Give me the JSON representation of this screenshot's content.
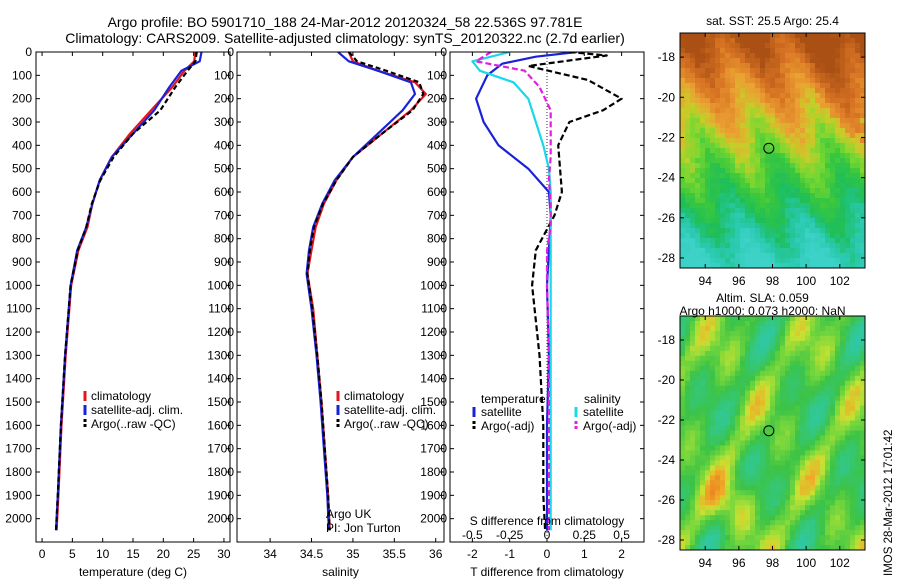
{
  "header": {
    "line1": "Argo profile: BO 5901710_188 24-Mar-2012 20120324_58 22.536S 97.781E",
    "line2": "Climatology: CARS2009. Satellite-adjusted climatology: synTS_20120322.nc (2.7d earlier)"
  },
  "colors": {
    "climatology": "#e8141c",
    "satellite": "#1a22d8",
    "argo": "#000000",
    "sat_salinity": "#19d8e8",
    "argo_salinity": "#e020e0"
  },
  "side_stamp": "IMOS 28-Mar-2012 17:01:42",
  "chart_data": [
    {
      "type": "line",
      "xlabel": "temperature (deg C)",
      "ylabel": "",
      "xlim": [
        -1,
        31
      ],
      "ylim": [
        2100,
        0
      ],
      "xticks": [
        0,
        5,
        10,
        15,
        20,
        25,
        30
      ],
      "yticks": [
        0,
        100,
        200,
        300,
        400,
        500,
        600,
        700,
        800,
        900,
        1000,
        1100,
        1200,
        1300,
        1400,
        1500,
        1600,
        1700,
        1800,
        1900,
        2000
      ],
      "legend": [
        "climatology",
        "satellite-adj. clim.",
        "Argo(..raw -QC)"
      ],
      "series": [
        {
          "name": "climatology",
          "color": "#e8141c",
          "dash": "none",
          "x": [
            25.3,
            25.1,
            23.5,
            21.5,
            18.0,
            14.5,
            11.5,
            9.5,
            8.3,
            7.5,
            6.0,
            4.8,
            3.9,
            3.2,
            2.7,
            2.4
          ],
          "y": [
            0,
            40,
            80,
            150,
            250,
            350,
            450,
            550,
            650,
            750,
            850,
            1000,
            1300,
            1600,
            1900,
            2050
          ]
        },
        {
          "name": "satellite-adj. clim.",
          "color": "#1a22d8",
          "dash": "none",
          "x": [
            26.3,
            26.0,
            23.0,
            21.0,
            18.5,
            15.0,
            11.5,
            9.5,
            8.3,
            7.3,
            5.8,
            4.7,
            3.8,
            3.1,
            2.6,
            2.3
          ],
          "y": [
            0,
            40,
            80,
            150,
            250,
            350,
            450,
            550,
            650,
            750,
            850,
            1000,
            1300,
            1600,
            1900,
            2050
          ]
        },
        {
          "name": "Argo(..raw -QC)",
          "color": "#000000",
          "dash": "5,3",
          "x": [
            25.5,
            25.3,
            24.0,
            22.0,
            19.5,
            15.0,
            11.8,
            9.6,
            8.2,
            7.3,
            5.9,
            4.7,
            3.8,
            3.1,
            2.6,
            2.3
          ],
          "y": [
            0,
            40,
            80,
            150,
            250,
            350,
            450,
            550,
            650,
            750,
            850,
            1000,
            1300,
            1600,
            1900,
            2050
          ]
        }
      ]
    },
    {
      "type": "line",
      "xlabel": "salinity",
      "ylabel": "",
      "xlim": [
        33.6,
        36.1
      ],
      "ylim": [
        2100,
        0
      ],
      "xticks": [
        34,
        34.5,
        35,
        35.5,
        36
      ],
      "yticks": [
        0,
        100,
        200,
        300,
        400,
        500,
        600,
        700,
        800,
        900,
        1000,
        1100,
        1200,
        1300,
        1400,
        1500,
        1600,
        1700,
        1800,
        1900,
        2000
      ],
      "legend": [
        "climatology",
        "satellite-adj. clim.",
        "Argo(..raw -QC)"
      ],
      "annotations": [
        "Argo UK",
        "PI: Jon Turton"
      ],
      "series": [
        {
          "name": "climatology",
          "color": "#e8141c",
          "dash": "none",
          "x": [
            34.95,
            35.0,
            35.3,
            35.75,
            35.88,
            35.7,
            35.35,
            35.0,
            34.8,
            34.65,
            34.55,
            34.5,
            34.45,
            34.52,
            34.57,
            34.62,
            34.66,
            34.7,
            34.72
          ],
          "y": [
            0,
            40,
            80,
            130,
            180,
            250,
            350,
            450,
            550,
            650,
            750,
            850,
            950,
            1100,
            1300,
            1500,
            1700,
            1900,
            2050
          ]
        },
        {
          "name": "satellite-adj. clim.",
          "color": "#1a22d8",
          "dash": "none",
          "x": [
            34.82,
            34.95,
            35.3,
            35.7,
            35.75,
            35.6,
            35.3,
            35.0,
            34.78,
            34.63,
            34.52,
            34.47,
            34.44,
            34.5,
            34.56,
            34.61,
            34.65,
            34.69,
            34.71
          ],
          "y": [
            0,
            40,
            80,
            130,
            180,
            250,
            350,
            450,
            550,
            650,
            750,
            850,
            950,
            1100,
            1300,
            1500,
            1700,
            1900,
            2050
          ]
        },
        {
          "name": "Argo(..raw -QC)",
          "color": "#000000",
          "dash": "5,3",
          "x": [
            34.95,
            35.05,
            35.4,
            35.8,
            35.85,
            35.72,
            35.35,
            35.0,
            34.8,
            34.64,
            34.53,
            34.48,
            34.45,
            34.51,
            34.57,
            34.62,
            34.66,
            34.7,
            34.72
          ],
          "y": [
            0,
            40,
            80,
            130,
            180,
            250,
            350,
            450,
            550,
            650,
            750,
            850,
            950,
            1100,
            1300,
            1500,
            1700,
            1900,
            2050
          ]
        }
      ]
    },
    {
      "type": "line",
      "xlabel": "T difference from climatology",
      "secondary_xlabel": "S difference from climatology",
      "xlim": [
        -2.6,
        2.6
      ],
      "ylim": [
        2100,
        0
      ],
      "xticks": [
        -2,
        -1,
        0,
        1,
        2
      ],
      "secondary_xticks": [
        "-0.5",
        "-0.25",
        "0",
        "0.25",
        "0.5"
      ],
      "secondary_xtick_values": [
        -2,
        -1,
        0,
        1,
        2
      ],
      "yticks": [
        0,
        100,
        200,
        300,
        400,
        500,
        600,
        700,
        800,
        900,
        1000,
        1100,
        1200,
        1300,
        1400,
        1500,
        1600,
        1700,
        1800,
        1900,
        2000
      ],
      "legend_groups": {
        "temperature": [
          "satellite",
          "Argo(-adj)"
        ],
        "salinity": [
          "satellite",
          "Argo(-adj)"
        ]
      },
      "series": [
        {
          "name": "temperature satellite",
          "color": "#1a22d8",
          "dash": "none",
          "x": [
            0.8,
            -0.3,
            -1.2,
            -1.6,
            -1.9,
            -1.7,
            -1.3,
            -0.5,
            0.05,
            0.1,
            0.05,
            0.0,
            0.05,
            0.0,
            0.0,
            0.0
          ],
          "y": [
            0,
            20,
            50,
            100,
            200,
            300,
            400,
            500,
            600,
            700,
            850,
            1000,
            1300,
            1600,
            1900,
            2050
          ]
        },
        {
          "name": "temperature Argo(-adj)",
          "color": "#000000",
          "dash": "6,3",
          "x": [
            0.6,
            1.6,
            -0.5,
            1.1,
            2.0,
            1.5,
            0.6,
            0.3,
            0.4,
            0.2,
            -0.3,
            -0.4,
            -0.2,
            -0.1,
            -0.1,
            -0.05
          ],
          "y": [
            0,
            15,
            60,
            120,
            200,
            250,
            300,
            400,
            600,
            700,
            850,
            1000,
            1300,
            1600,
            1900,
            2050
          ]
        },
        {
          "name": "salinity satellite",
          "color": "#19d8e8",
          "dash": "none",
          "x": [
            -1.0,
            -2.0,
            -1.8,
            -0.9,
            -0.5,
            -0.3,
            -0.1,
            0.05,
            0.1,
            0.1,
            0.1,
            0.1,
            0.1,
            0.1,
            0.1
          ],
          "y": [
            0,
            40,
            80,
            130,
            200,
            300,
            400,
            500,
            600,
            700,
            850,
            1000,
            1300,
            1600,
            2050
          ]
        },
        {
          "name": "salinity Argo(-adj)",
          "color": "#e020e0",
          "dash": "6,3",
          "x": [
            -1.5,
            -1.9,
            -0.6,
            -0.2,
            0.1,
            0.1,
            0.1,
            0.05,
            0.1,
            0.1,
            0.0,
            0.0,
            0.05,
            0.05,
            0.05
          ],
          "y": [
            0,
            40,
            80,
            150,
            250,
            350,
            450,
            550,
            650,
            750,
            850,
            1000,
            1300,
            1600,
            2050
          ]
        }
      ]
    },
    {
      "type": "heatmap",
      "title": "sat. SST: 25.5 Argo: 25.4",
      "xlim": [
        92.5,
        103.5
      ],
      "ylim": [
        -28.5,
        -16.8
      ],
      "xticks": [
        94,
        96,
        98,
        100,
        102
      ],
      "yticks": [
        -18,
        -20,
        -22,
        -24,
        -26,
        -28
      ],
      "marker": {
        "lon": 97.781,
        "lat": -22.536
      }
    },
    {
      "type": "heatmap",
      "title": "Altim. SLA: 0.059",
      "subtitle": "Argo h1000: 0.073 h2000: NaN",
      "xlim": [
        92.5,
        103.5
      ],
      "ylim": [
        -28.5,
        -16.8
      ],
      "xticks": [
        94,
        96,
        98,
        100,
        102
      ],
      "yticks": [
        -18,
        -20,
        -22,
        -24,
        -26,
        -28
      ],
      "marker": {
        "lon": 97.781,
        "lat": -22.536
      }
    }
  ]
}
